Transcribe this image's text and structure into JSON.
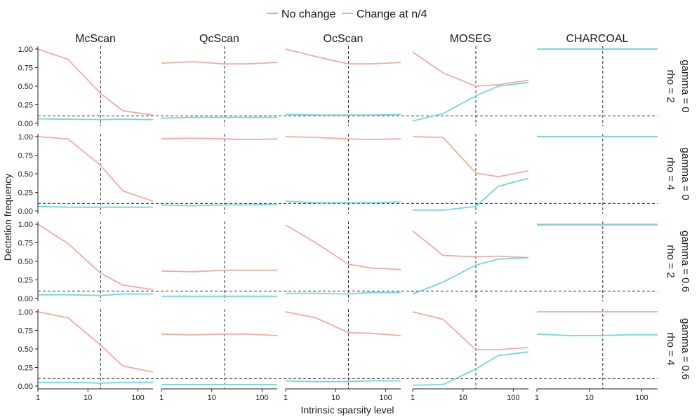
{
  "chart_data": {
    "type": "line",
    "layout": "faceted grid: 5 method columns x 4 parameter rows",
    "xlabel": "Intrinsic sparsity level",
    "ylabel": "Dectetion frequency",
    "x_scale": "log10",
    "xlim": [
      1,
      200
    ],
    "x_ticks": [
      1,
      10,
      100
    ],
    "x_tick_labels": [
      "1",
      "10",
      "100"
    ],
    "ylim": [
      0,
      1
    ],
    "y_ticks": [
      0,
      0.25,
      0.5,
      0.75,
      1
    ],
    "y_tick_labels": [
      "0.00",
      "0.25",
      "0.50",
      "0.75",
      "1.00"
    ],
    "vertical_reference_x": 18,
    "horizontal_reference_y": 0.1,
    "legend_position": "top-center",
    "legend": [
      {
        "name": "No change",
        "color": "#6fd8de"
      },
      {
        "name": "Change at n/4",
        "color": "#f4aaa3"
      }
    ],
    "x": [
      1,
      4,
      18,
      50,
      200
    ],
    "columns": [
      "McScan",
      "QcScan",
      "OcScan",
      "MOSEG",
      "CHARCOAL"
    ],
    "rows": [
      {
        "label_top": "gamma = 0",
        "label_bottom": "rho = 2"
      },
      {
        "label_top": "gamma = 0",
        "label_bottom": "rho = 4"
      },
      {
        "label_top": "gamma = 0.6",
        "label_bottom": "rho = 2"
      },
      {
        "label_top": "gamma = 0.6",
        "label_bottom": "rho = 4"
      }
    ],
    "panels": [
      [
        {
          "no_change": [
            0.06,
            0.055,
            0.05,
            0.055,
            0.05
          ],
          "change": [
            1.0,
            0.86,
            0.4,
            0.17,
            0.11
          ]
        },
        {
          "no_change": [
            0.07,
            0.08,
            0.08,
            0.08,
            0.08
          ],
          "change": [
            0.81,
            0.83,
            0.8,
            0.8,
            0.82
          ]
        },
        {
          "no_change": [
            0.12,
            0.11,
            0.11,
            0.11,
            0.12
          ],
          "change": [
            1.0,
            0.9,
            0.8,
            0.8,
            0.82
          ]
        },
        {
          "no_change": [
            0.03,
            0.13,
            0.37,
            0.5,
            0.55
          ],
          "change": [
            0.96,
            0.68,
            0.5,
            0.52,
            0.58
          ]
        },
        {
          "no_change": [
            1.0,
            1.0,
            1.0,
            1.0,
            1.0
          ],
          "change": [
            1.0,
            1.0,
            1.0,
            1.0,
            1.0
          ]
        }
      ],
      [
        {
          "no_change": [
            0.06,
            0.05,
            0.05,
            0.05,
            0.05
          ],
          "change": [
            1.0,
            0.97,
            0.61,
            0.27,
            0.13
          ]
        },
        {
          "no_change": [
            0.08,
            0.07,
            0.08,
            0.08,
            0.09
          ],
          "change": [
            0.97,
            0.98,
            0.97,
            0.96,
            0.97
          ]
        },
        {
          "no_change": [
            0.13,
            0.11,
            0.11,
            0.11,
            0.12
          ],
          "change": [
            1.0,
            0.99,
            0.97,
            0.96,
            0.97
          ]
        },
        {
          "no_change": [
            0.01,
            0.01,
            0.06,
            0.33,
            0.44
          ],
          "change": [
            1.0,
            0.99,
            0.51,
            0.46,
            0.54
          ]
        },
        {
          "no_change": [
            1.0,
            1.0,
            1.0,
            1.0,
            1.0
          ],
          "change": [
            1.0,
            1.0,
            1.0,
            1.0,
            1.0
          ]
        }
      ],
      [
        {
          "no_change": [
            0.05,
            0.05,
            0.04,
            0.06,
            0.06
          ],
          "change": [
            1.0,
            0.74,
            0.34,
            0.18,
            0.12
          ]
        },
        {
          "no_change": [
            0.03,
            0.03,
            0.03,
            0.03,
            0.03
          ],
          "change": [
            0.37,
            0.36,
            0.38,
            0.38,
            0.38
          ]
        },
        {
          "no_change": [
            0.07,
            0.07,
            0.06,
            0.08,
            0.08
          ],
          "change": [
            0.99,
            0.75,
            0.46,
            0.41,
            0.39
          ]
        },
        {
          "no_change": [
            0.06,
            0.22,
            0.45,
            0.53,
            0.55
          ],
          "change": [
            0.91,
            0.58,
            0.56,
            0.57,
            0.55
          ]
        },
        {
          "no_change": [
            0.99,
            0.99,
            0.99,
            0.99,
            0.99
          ],
          "change": [
            1.0,
            1.0,
            1.0,
            1.0,
            1.0
          ]
        }
      ],
      [
        {
          "no_change": [
            0.05,
            0.05,
            0.04,
            0.05,
            0.05
          ],
          "change": [
            1.0,
            0.92,
            0.55,
            0.27,
            0.19
          ]
        },
        {
          "no_change": [
            0.02,
            0.02,
            0.02,
            0.02,
            0.02
          ],
          "change": [
            0.7,
            0.69,
            0.7,
            0.7,
            0.68
          ]
        },
        {
          "no_change": [
            0.07,
            0.06,
            0.06,
            0.07,
            0.07
          ],
          "change": [
            1.0,
            0.92,
            0.72,
            0.71,
            0.68
          ]
        },
        {
          "no_change": [
            0.01,
            0.02,
            0.23,
            0.41,
            0.46
          ],
          "change": [
            1.0,
            0.9,
            0.49,
            0.49,
            0.52
          ]
        },
        {
          "no_change": [
            0.7,
            0.68,
            0.68,
            0.69,
            0.69
          ],
          "change": [
            1.0,
            1.0,
            1.0,
            1.0,
            1.0
          ]
        }
      ]
    ]
  }
}
